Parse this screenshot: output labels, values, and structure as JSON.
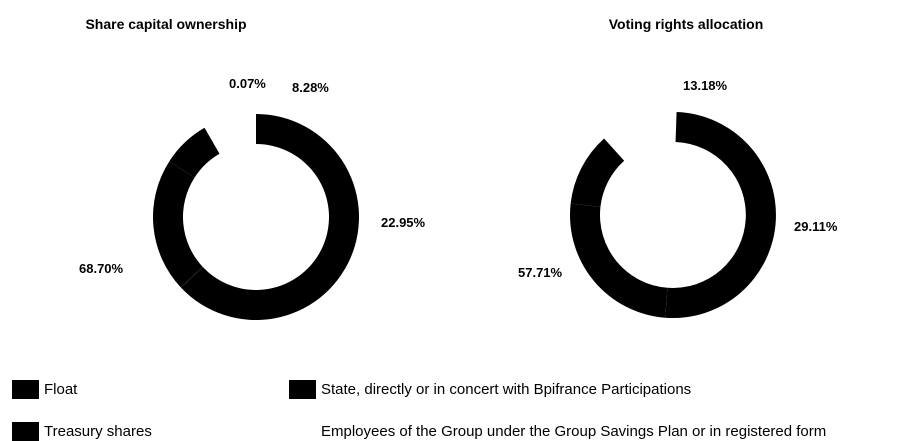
{
  "chart_data": [
    {
      "type": "pie",
      "style": "donut",
      "title": "Share capital ownership",
      "slices": [
        {
          "label": "Float",
          "value": 68.7,
          "display": "68.70%"
        },
        {
          "label": "Treasury shares",
          "value": 0.07,
          "display": "0.07%"
        },
        {
          "label": "State, directly or in concert with Bpifrance Participations",
          "value": 22.95,
          "display": "22.95%"
        },
        {
          "label": "Employees of the Group under the Group Savings Plan or in registered form",
          "value": 8.28,
          "display": "8.28%"
        }
      ]
    },
    {
      "type": "pie",
      "style": "donut",
      "title": "Voting rights allocation",
      "slices": [
        {
          "label": "Float",
          "value": 57.71,
          "display": "57.71%"
        },
        {
          "label": "State, directly or in concert with Bpifrance Participations",
          "value": 29.11,
          "display": "29.11%"
        },
        {
          "label": "Employees of the Group under the Group Savings Plan or in registered form",
          "value": 13.18,
          "display": "13.18%"
        }
      ]
    }
  ],
  "legend": [
    {
      "label": "Float",
      "swatch": true
    },
    {
      "label": "State, directly or in concert with Bpifrance Participations",
      "swatch": true
    },
    {
      "label": "Treasury shares",
      "swatch": true
    },
    {
      "label": "Employees of the Group under the Group Savings Plan or in registered form",
      "swatch": false
    }
  ],
  "colors": {
    "slice_fill": "#000000",
    "background": "#ffffff"
  }
}
